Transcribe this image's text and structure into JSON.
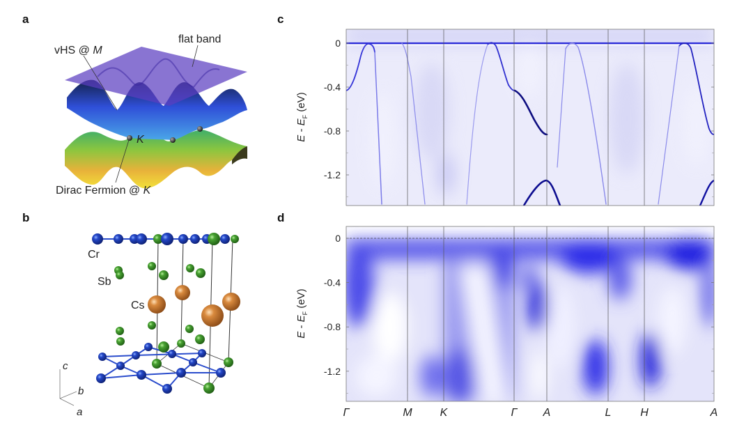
{
  "panels": {
    "a": "a",
    "b": "b",
    "c": "c",
    "d": "d"
  },
  "panel_a": {
    "flat_band": "flat band",
    "vhs_prefix": "vHS @ ",
    "vhs_point": "M",
    "k_label": "K",
    "dirac_prefix": "Dirac Fermion @ ",
    "dirac_point": "K"
  },
  "panel_b": {
    "atoms": {
      "cr": "Cr",
      "sb": "Sb",
      "cs": "Cs"
    },
    "axes": {
      "a": "a",
      "b": "b",
      "c": "c"
    },
    "colors": {
      "cr": "#1f3fbf",
      "sb": "#3f9a2e",
      "cs": "#d98a3e"
    }
  },
  "ylabel": {
    "e": "E",
    "minus": " - ",
    "ef": "E",
    "ef_sub": "F",
    "unit": " (eV)"
  },
  "chart_data": [
    {
      "panel": "c",
      "type": "heatmap",
      "ylabel": "E - E_F (eV)",
      "yticks": [
        "0",
        "-0.4",
        "-0.8",
        "-1.2"
      ],
      "ylim": [
        -1.47,
        0.12
      ],
      "xticks": [
        "Γ",
        "M",
        "K",
        "Γ",
        "A",
        "L",
        "H",
        "A"
      ],
      "colormap": [
        "#ffffff",
        "#0000d0"
      ]
    },
    {
      "panel": "d",
      "type": "heatmap",
      "ylabel": "E - E_F (eV)",
      "yticks": [
        "0",
        "-0.4",
        "-0.8",
        "-1.2"
      ],
      "ylim": [
        -1.47,
        0.1
      ],
      "xticks": [
        "Γ",
        "M",
        "K",
        "Γ",
        "A",
        "L",
        "H",
        "A"
      ],
      "fermi_level_line": 0,
      "colormap": [
        "#ffffff",
        "#0000d0"
      ]
    }
  ]
}
